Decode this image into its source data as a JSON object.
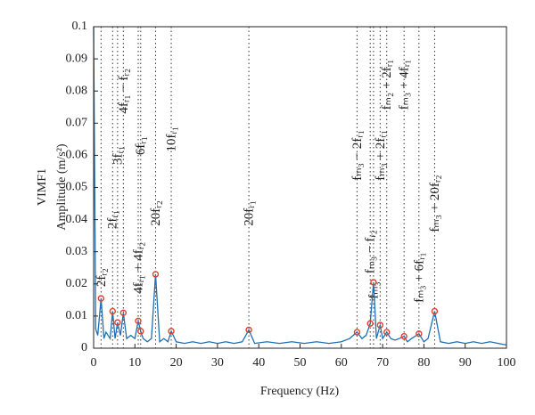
{
  "chart_data": {
    "type": "line",
    "xlabel": "Frequency (Hz)",
    "ylabel": [
      "VIMF1",
      "Amplitude (m/s²)"
    ],
    "xlim": [
      0,
      100
    ],
    "xticks": [
      0,
      10,
      20,
      30,
      40,
      50,
      60,
      70,
      80,
      90,
      100
    ],
    "ylim": [
      0,
      0.1
    ],
    "yticks": [
      0,
      0.01,
      0.02,
      0.03,
      0.04,
      0.05,
      0.06,
      0.07,
      0.08,
      0.09,
      0.1
    ],
    "series": [
      {
        "color": "#1f6fb4",
        "x": [
          0,
          0.5,
          1,
          1.8,
          2.5,
          3,
          4,
          4.6,
          5.2,
          5.8,
          6.5,
          7.2,
          8,
          9,
          10,
          10.8,
          11.4,
          12,
          13,
          14,
          15,
          16,
          17,
          18,
          18.8,
          20,
          22,
          24,
          26,
          28,
          30,
          32,
          34,
          36,
          37.6,
          39,
          42,
          45,
          48,
          51,
          54,
          57,
          60,
          62,
          63.8,
          65,
          66,
          67,
          67.8,
          68.5,
          69.4,
          70,
          71,
          72,
          73,
          74,
          75.2,
          76,
          77,
          78.8,
          80,
          81,
          82.6,
          84,
          86,
          88,
          90,
          92,
          94,
          96,
          98,
          100
        ],
        "values": [
          0.1,
          0.006,
          0.004,
          0.0155,
          0.003,
          0.005,
          0.003,
          0.0115,
          0.003,
          0.008,
          0.004,
          0.011,
          0.003,
          0.004,
          0.003,
          0.0085,
          0.0053,
          0.003,
          0.002,
          0.003,
          0.023,
          0.002,
          0.003,
          0.002,
          0.0053,
          0.002,
          0.0015,
          0.002,
          0.0015,
          0.002,
          0.0015,
          0.002,
          0.0015,
          0.002,
          0.0057,
          0.0015,
          0.002,
          0.0015,
          0.002,
          0.0015,
          0.002,
          0.0015,
          0.002,
          0.003,
          0.005,
          0.003,
          0.004,
          0.0077,
          0.0205,
          0.003,
          0.0072,
          0.003,
          0.005,
          0.003,
          0.0025,
          0.003,
          0.0037,
          0.002,
          0.003,
          0.0045,
          0.002,
          0.003,
          0.0115,
          0.002,
          0.0015,
          0.002,
          0.0015,
          0.002,
          0.0015,
          0.002,
          0.0015,
          0.001
        ]
      }
    ],
    "markers": {
      "color": "#e2402c",
      "x": [
        1.8,
        4.6,
        5.8,
        7.2,
        10.8,
        11.4,
        15,
        18.8,
        37.6,
        63.8,
        67,
        67.8,
        69.4,
        71,
        75.2,
        78.8,
        82.6
      ],
      "values": [
        0.0155,
        0.0115,
        0.008,
        0.011,
        0.0085,
        0.0053,
        0.023,
        0.0053,
        0.0057,
        0.005,
        0.0077,
        0.0205,
        0.0072,
        0.005,
        0.0037,
        0.0045,
        0.0115
      ]
    },
    "annotations": [
      {
        "text": "2fᵣ₂",
        "x": 1.8
      },
      {
        "text": "2fᵣ₁",
        "x": 4.6
      },
      {
        "text": "3fᵣ₁",
        "x": 5.8
      },
      {
        "text": "4fᵣ₁ − fᵣ₂",
        "x": 7.2
      },
      {
        "text": "4fᵣ₁ + 4fᵣ₂",
        "x": 10.8
      },
      {
        "text": "6fᵣ₁",
        "x": 11.4
      },
      {
        "text": "20fᵣ₂",
        "x": 15
      },
      {
        "text": "10fᵣ₁",
        "x": 18.8
      },
      {
        "text": "20fᵣ₁",
        "x": 37.6
      },
      {
        "text": "fₘ₃ − 2fᵣ₁",
        "x": 63.8
      },
      {
        "text": "fₘ₃ − fᵣ₂",
        "x": 67
      },
      {
        "text": "fₘ₃",
        "x": 67.8
      },
      {
        "text": "fₘ₃ + 2fᵣ₁",
        "x": 69.4
      },
      {
        "text": "fₘ₂ + 2fᵣ₁",
        "x": 71
      },
      {
        "text": "fₘ₃ + 4fᵣ₁",
        "x": 75.2
      },
      {
        "text": "fₘ₃ + 6fᵣ₁",
        "x": 78.8
      },
      {
        "text": "fₘ₃ + 20fᵣ₂",
        "x": 82.6
      }
    ]
  }
}
